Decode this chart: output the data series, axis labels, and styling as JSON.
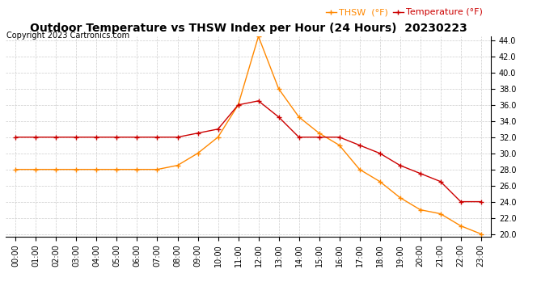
{
  "title": "Outdoor Temperature vs THSW Index per Hour (24 Hours)  20230223",
  "copyright": "Copyright 2023 Cartronics.com",
  "hours": [
    "00:00",
    "01:00",
    "02:00",
    "03:00",
    "04:00",
    "05:00",
    "06:00",
    "07:00",
    "08:00",
    "09:00",
    "10:00",
    "11:00",
    "12:00",
    "13:00",
    "14:00",
    "15:00",
    "16:00",
    "17:00",
    "18:00",
    "19:00",
    "20:00",
    "21:00",
    "22:00",
    "23:00"
  ],
  "temperature": [
    32.0,
    32.0,
    32.0,
    32.0,
    32.0,
    32.0,
    32.0,
    32.0,
    32.0,
    32.5,
    33.0,
    36.0,
    36.5,
    34.5,
    32.0,
    32.0,
    32.0,
    31.0,
    30.0,
    28.5,
    27.5,
    26.5,
    24.0,
    24.0
  ],
  "thsw": [
    28.0,
    28.0,
    28.0,
    28.0,
    28.0,
    28.0,
    28.0,
    28.0,
    28.5,
    30.0,
    32.0,
    36.0,
    44.5,
    38.0,
    34.5,
    32.5,
    31.0,
    28.0,
    26.5,
    24.5,
    23.0,
    22.5,
    21.0,
    20.0
  ],
  "temp_color": "#cc0000",
  "thsw_color": "#ff8800",
  "marker": "+",
  "ylim_min": 20.0,
  "ylim_max": 44.0,
  "ytick_interval": 2.0,
  "legend_thsw": "THSW  (°F)",
  "legend_temp": "Temperature (°F)",
  "background_color": "#ffffff",
  "grid_color": "#cccccc",
  "title_fontsize": 10,
  "axis_fontsize": 7,
  "copyright_fontsize": 7,
  "legend_fontsize": 8
}
